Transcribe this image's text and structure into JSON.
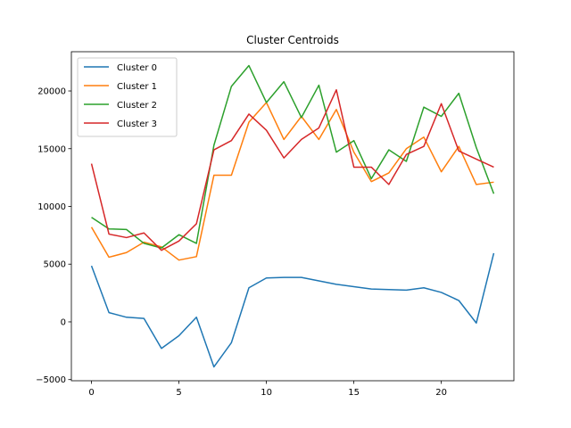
{
  "chart_data": {
    "type": "line",
    "title": "Cluster Centroids",
    "xlabel": "",
    "ylabel": "",
    "x": [
      0,
      1,
      2,
      3,
      4,
      5,
      6,
      7,
      8,
      9,
      10,
      11,
      12,
      13,
      14,
      15,
      16,
      17,
      18,
      19,
      20,
      21,
      22,
      23
    ],
    "xlim": [
      -1.15,
      24.15
    ],
    "ylim": [
      -5100,
      23400
    ],
    "xticks": [
      0,
      5,
      10,
      15,
      20
    ],
    "yticks": [
      -5000,
      0,
      5000,
      10000,
      15000,
      20000
    ],
    "grid": false,
    "legend_position": "top-left",
    "series": [
      {
        "name": "Cluster 0",
        "color": "#1f77b4",
        "values": [
          4850,
          800,
          400,
          300,
          -2300,
          -1200,
          400,
          -3900,
          -1800,
          2950,
          3800,
          3850,
          3850,
          3550,
          3250,
          3050,
          2850,
          2800,
          2750,
          2950,
          2550,
          1850,
          -100,
          5950
        ]
      },
      {
        "name": "Cluster 1",
        "color": "#ff7f0e",
        "values": [
          8200,
          5600,
          6000,
          6900,
          6500,
          5350,
          5650,
          12700,
          12700,
          17300,
          19000,
          15800,
          17800,
          15800,
          18400,
          14700,
          12150,
          12900,
          15000,
          16000,
          13000,
          15200,
          11900,
          12100
        ]
      },
      {
        "name": "Cluster 2",
        "color": "#2ca02c",
        "values": [
          9050,
          8050,
          8000,
          6800,
          6400,
          7550,
          6800,
          15300,
          20400,
          22200,
          19000,
          20800,
          17700,
          20500,
          14700,
          15700,
          12400,
          14900,
          13900,
          18600,
          17800,
          19800,
          15100,
          11100
        ]
      },
      {
        "name": "Cluster 3",
        "color": "#d62728",
        "values": [
          13700,
          7600,
          7300,
          7700,
          6200,
          7000,
          8500,
          14900,
          15700,
          18000,
          16600,
          14200,
          15800,
          16800,
          20100,
          13400,
          13400,
          11900,
          14500,
          15200,
          18900,
          14800,
          14100,
          13400
        ]
      }
    ]
  }
}
